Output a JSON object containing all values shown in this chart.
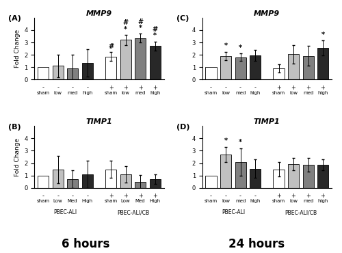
{
  "panels": {
    "A": {
      "title": "MMP9",
      "label": "(A)",
      "ylim": [
        0,
        5
      ],
      "yticks": [
        0,
        1,
        2,
        3,
        4
      ],
      "ylabel": "Fold Change",
      "bars": [
        1.0,
        1.1,
        0.9,
        1.35,
        1.85,
        3.2,
        3.35,
        2.7
      ],
      "errors": [
        0.0,
        0.9,
        1.1,
        1.1,
        0.35,
        0.4,
        0.35,
        0.35
      ],
      "colors": [
        "white",
        "#c0c0c0",
        "#808080",
        "#282828",
        "white",
        "#c0c0c0",
        "#808080",
        "#282828"
      ],
      "annotations": [
        "",
        "",
        "",
        "",
        "#",
        "*\n#",
        "*\n#",
        "*\n#"
      ],
      "xtick_labels": [
        "sham",
        "low",
        "med",
        "high",
        "sham",
        "low",
        "med",
        "high"
      ],
      "sign_labels": [
        "-",
        "-",
        "-",
        "-",
        "+",
        "+",
        "+",
        "+"
      ]
    },
    "B": {
      "title": "TIMP1",
      "label": "(B)",
      "ylim": [
        0,
        5
      ],
      "yticks": [
        0,
        1,
        2,
        3,
        4
      ],
      "ylabel": "Fold Change",
      "bars": [
        1.0,
        1.5,
        0.7,
        1.1,
        1.5,
        1.1,
        0.5,
        0.7
      ],
      "errors": [
        0.0,
        1.1,
        0.7,
        1.1,
        0.7,
        0.65,
        0.55,
        0.4
      ],
      "colors": [
        "white",
        "#c0c0c0",
        "#808080",
        "#282828",
        "white",
        "#c0c0c0",
        "#808080",
        "#282828"
      ],
      "annotations": [
        "",
        "",
        "",
        "",
        "",
        "",
        "",
        ""
      ],
      "xtick_labels": [
        "sham",
        "Low",
        "Med",
        "High",
        "sham",
        "Low",
        "Med",
        "High"
      ],
      "sign_labels": [
        "-",
        "-",
        "-",
        "-",
        "+",
        "+",
        "+",
        "+"
      ],
      "group_labels": [
        "PBEC-ALI",
        "PBEC-ALI/CB"
      ]
    },
    "C": {
      "title": "MMP9",
      "label": "(C)",
      "ylim": [
        0,
        5
      ],
      "yticks": [
        0,
        1,
        2,
        3,
        4
      ],
      "ylabel": "Fold Change",
      "bars": [
        1.0,
        1.9,
        1.8,
        1.95,
        0.9,
        2.05,
        1.9,
        2.55
      ],
      "errors": [
        0.0,
        0.35,
        0.3,
        0.45,
        0.35,
        0.75,
        0.8,
        0.6
      ],
      "colors": [
        "white",
        "#c0c0c0",
        "#808080",
        "#282828",
        "white",
        "#c0c0c0",
        "#808080",
        "#282828"
      ],
      "annotations": [
        "",
        "*",
        "*",
        "",
        "",
        "",
        "",
        "*"
      ],
      "xtick_labels": [
        "sham",
        "low",
        "med",
        "high",
        "sham",
        "low",
        "med",
        "high"
      ],
      "sign_labels": [
        "-",
        "-",
        "-",
        "-",
        "+",
        "+",
        "+",
        "+"
      ]
    },
    "D": {
      "title": "TIMP1",
      "label": "(D)",
      "ylim": [
        0,
        5
      ],
      "yticks": [
        0,
        1,
        2,
        3,
        4
      ],
      "ylabel": "Fold Change",
      "bars": [
        1.0,
        2.7,
        2.1,
        1.55,
        1.5,
        1.9,
        1.85,
        1.85
      ],
      "errors": [
        0.0,
        0.6,
        1.1,
        0.75,
        0.6,
        0.5,
        0.55,
        0.45
      ],
      "colors": [
        "white",
        "#c0c0c0",
        "#808080",
        "#282828",
        "white",
        "#c0c0c0",
        "#808080",
        "#282828"
      ],
      "annotations": [
        "",
        "*",
        "*",
        "",
        "",
        "",
        "",
        ""
      ],
      "xtick_labels": [
        "sham",
        "low",
        "med",
        "high",
        "sham",
        "low",
        "med",
        "high"
      ],
      "sign_labels": [
        "-",
        "-",
        "-",
        "-",
        "+",
        "+",
        "+",
        "+"
      ],
      "group_labels": [
        "PBEC-ALI",
        "PBEC-ALI/CB"
      ]
    }
  },
  "footer_left": "6 hours",
  "footer_right": "24 hours"
}
